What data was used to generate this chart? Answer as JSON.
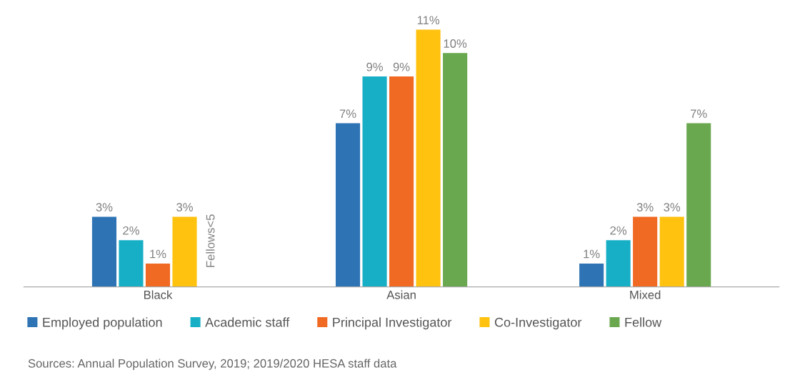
{
  "chart_data": {
    "type": "bar",
    "categories": [
      "Black",
      "Asian",
      "Mixed"
    ],
    "series": [
      {
        "name": "Employed population",
        "color": "#2e74b5",
        "values": [
          3,
          7,
          1
        ],
        "value_labels": [
          "3%",
          "7%",
          "1%"
        ]
      },
      {
        "name": "Academic staff",
        "color": "#17afc6",
        "values": [
          2,
          9,
          2
        ],
        "value_labels": [
          "2%",
          "9%",
          "2%"
        ]
      },
      {
        "name": "Principal Investigator",
        "color": "#f06a23",
        "values": [
          1,
          9,
          3
        ],
        "value_labels": [
          "1%",
          "9%",
          "3%"
        ]
      },
      {
        "name": "Co-Investigator",
        "color": "#ffc20e",
        "values": [
          3,
          11,
          3
        ],
        "value_labels": [
          "3%",
          "11%",
          "3%"
        ]
      },
      {
        "name": "Fellow",
        "color": "#6aa84f",
        "values": [
          null,
          10,
          7
        ],
        "value_labels": [
          null,
          "10%",
          "7%"
        ]
      }
    ],
    "tick_labels": "x",
    "grid": false,
    "legend": "bottom",
    "annotations": [
      "Fellows<5",
      "Sources: Annual Population Survey, 2019; 2019/2020 HESA staff data"
    ]
  }
}
